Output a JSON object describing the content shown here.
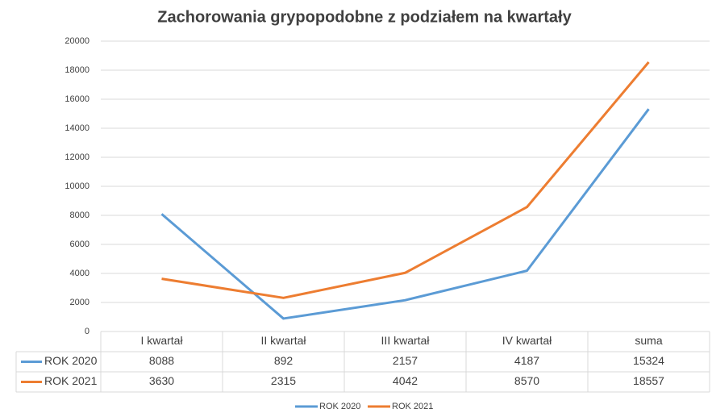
{
  "chart_data": {
    "type": "line",
    "title": "Zachorowania grypopodobne z podziałem na kwartały",
    "categories": [
      "I kwartał",
      "II kwartał",
      "III kwartał",
      "IV kwartał",
      "suma"
    ],
    "series": [
      {
        "name": "ROK 2020",
        "color": "#5b9bd5",
        "values": [
          8088,
          892,
          2157,
          4187,
          15324
        ]
      },
      {
        "name": "ROK 2021",
        "color": "#ed7d31",
        "values": [
          3630,
          2315,
          4042,
          8570,
          18557
        ]
      }
    ],
    "ylim": [
      0,
      20000
    ],
    "yticks": [
      0,
      2000,
      4000,
      6000,
      8000,
      10000,
      12000,
      14000,
      16000,
      18000,
      20000
    ],
    "grid": true,
    "legend": "bottom"
  }
}
